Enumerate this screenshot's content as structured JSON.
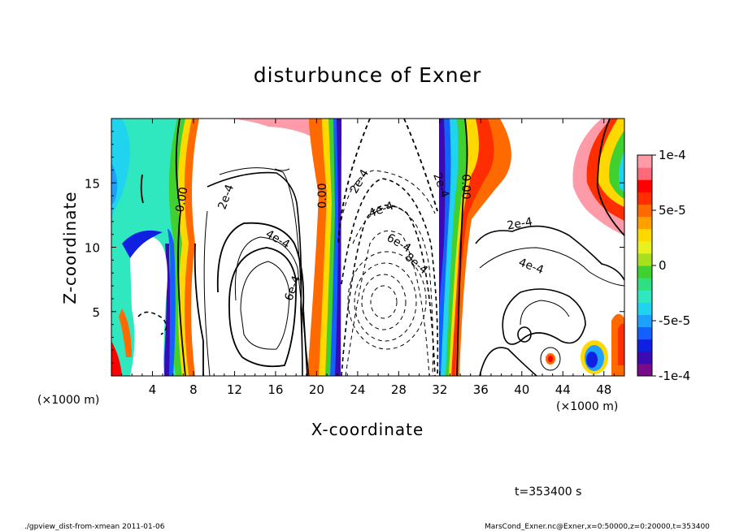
{
  "chart_data": {
    "type": "heatmap",
    "title": "disturbunce of Exner",
    "xlabel": "X-coordinate",
    "ylabel": "Z-coordinate",
    "x_unit_left": "(×1000 m)",
    "x_unit_right": "(×1000 m)",
    "xlim": [
      0,
      50
    ],
    "ylim": [
      0,
      20
    ],
    "x_ticks": [
      4,
      8,
      12,
      16,
      20,
      24,
      28,
      32,
      36,
      40,
      44,
      48
    ],
    "y_ticks": [
      5,
      10,
      15
    ],
    "colorbar": {
      "vmin": -0.0001,
      "vmax": 0.0001,
      "tick_labels": [
        "1e-4",
        "5e-5",
        "0",
        "-5e-5",
        "-1e-4"
      ],
      "tick_values": [
        0.0001,
        5e-05,
        0,
        -5e-05,
        -0.0001
      ],
      "colors": [
        "#7a0a8c",
        "#3b0ab0",
        "#1020e0",
        "#1460ff",
        "#1ea0ff",
        "#20d4f0",
        "#30e8c0",
        "#30e080",
        "#40d030",
        "#a8e020",
        "#e8f020",
        "#ffd800",
        "#ffa000",
        "#ff6a00",
        "#ff2e00",
        "#ff0000",
        "#ff6a7a",
        "#ff9aa8"
      ]
    },
    "contour_labels": [
      {
        "text": "0.00",
        "x": 6.9,
        "z": 13.7,
        "rotate": -80
      },
      {
        "text": "2e-4",
        "x": 11.2,
        "z": 13.9,
        "rotate": -70
      },
      {
        "text": "4e-4",
        "x": 16.2,
        "z": 10.6,
        "rotate": 30
      },
      {
        "text": "6e-4",
        "x": 17.7,
        "z": 6.8,
        "rotate": -70
      },
      {
        "text": "0.00",
        "x": 20.6,
        "z": 14.0,
        "rotate": -90
      },
      {
        "text": "2e-4",
        "x": 24.2,
        "z": 15.1,
        "rotate": -60
      },
      {
        "text": "4e-4",
        "x": 26.3,
        "z": 12.9,
        "rotate": -20
      },
      {
        "text": "6e-4",
        "x": 28.0,
        "z": 10.3,
        "rotate": 30
      },
      {
        "text": "8e-4",
        "x": 29.7,
        "z": 8.7,
        "rotate": 40
      },
      {
        "text": "2e-4",
        "x": 32.1,
        "z": 14.8,
        "rotate": 70
      },
      {
        "text": "0.00",
        "x": 34.5,
        "z": 14.7,
        "rotate": 90
      },
      {
        "text": "2e-4",
        "x": 39.8,
        "z": 11.8,
        "rotate": -10
      },
      {
        "text": "4e-4",
        "x": 40.9,
        "z": 8.5,
        "rotate": 20
      }
    ]
  },
  "footer": {
    "time": "t=353400 s",
    "left_note": "./gpview_dist-from-xmean  2011-01-06",
    "right_note": "MarsCond_Exner.nc@Exner,x=0:50000,z=0:20000,t=353400"
  },
  "colors": {
    "axis": "#000000",
    "background": "#ffffff"
  }
}
